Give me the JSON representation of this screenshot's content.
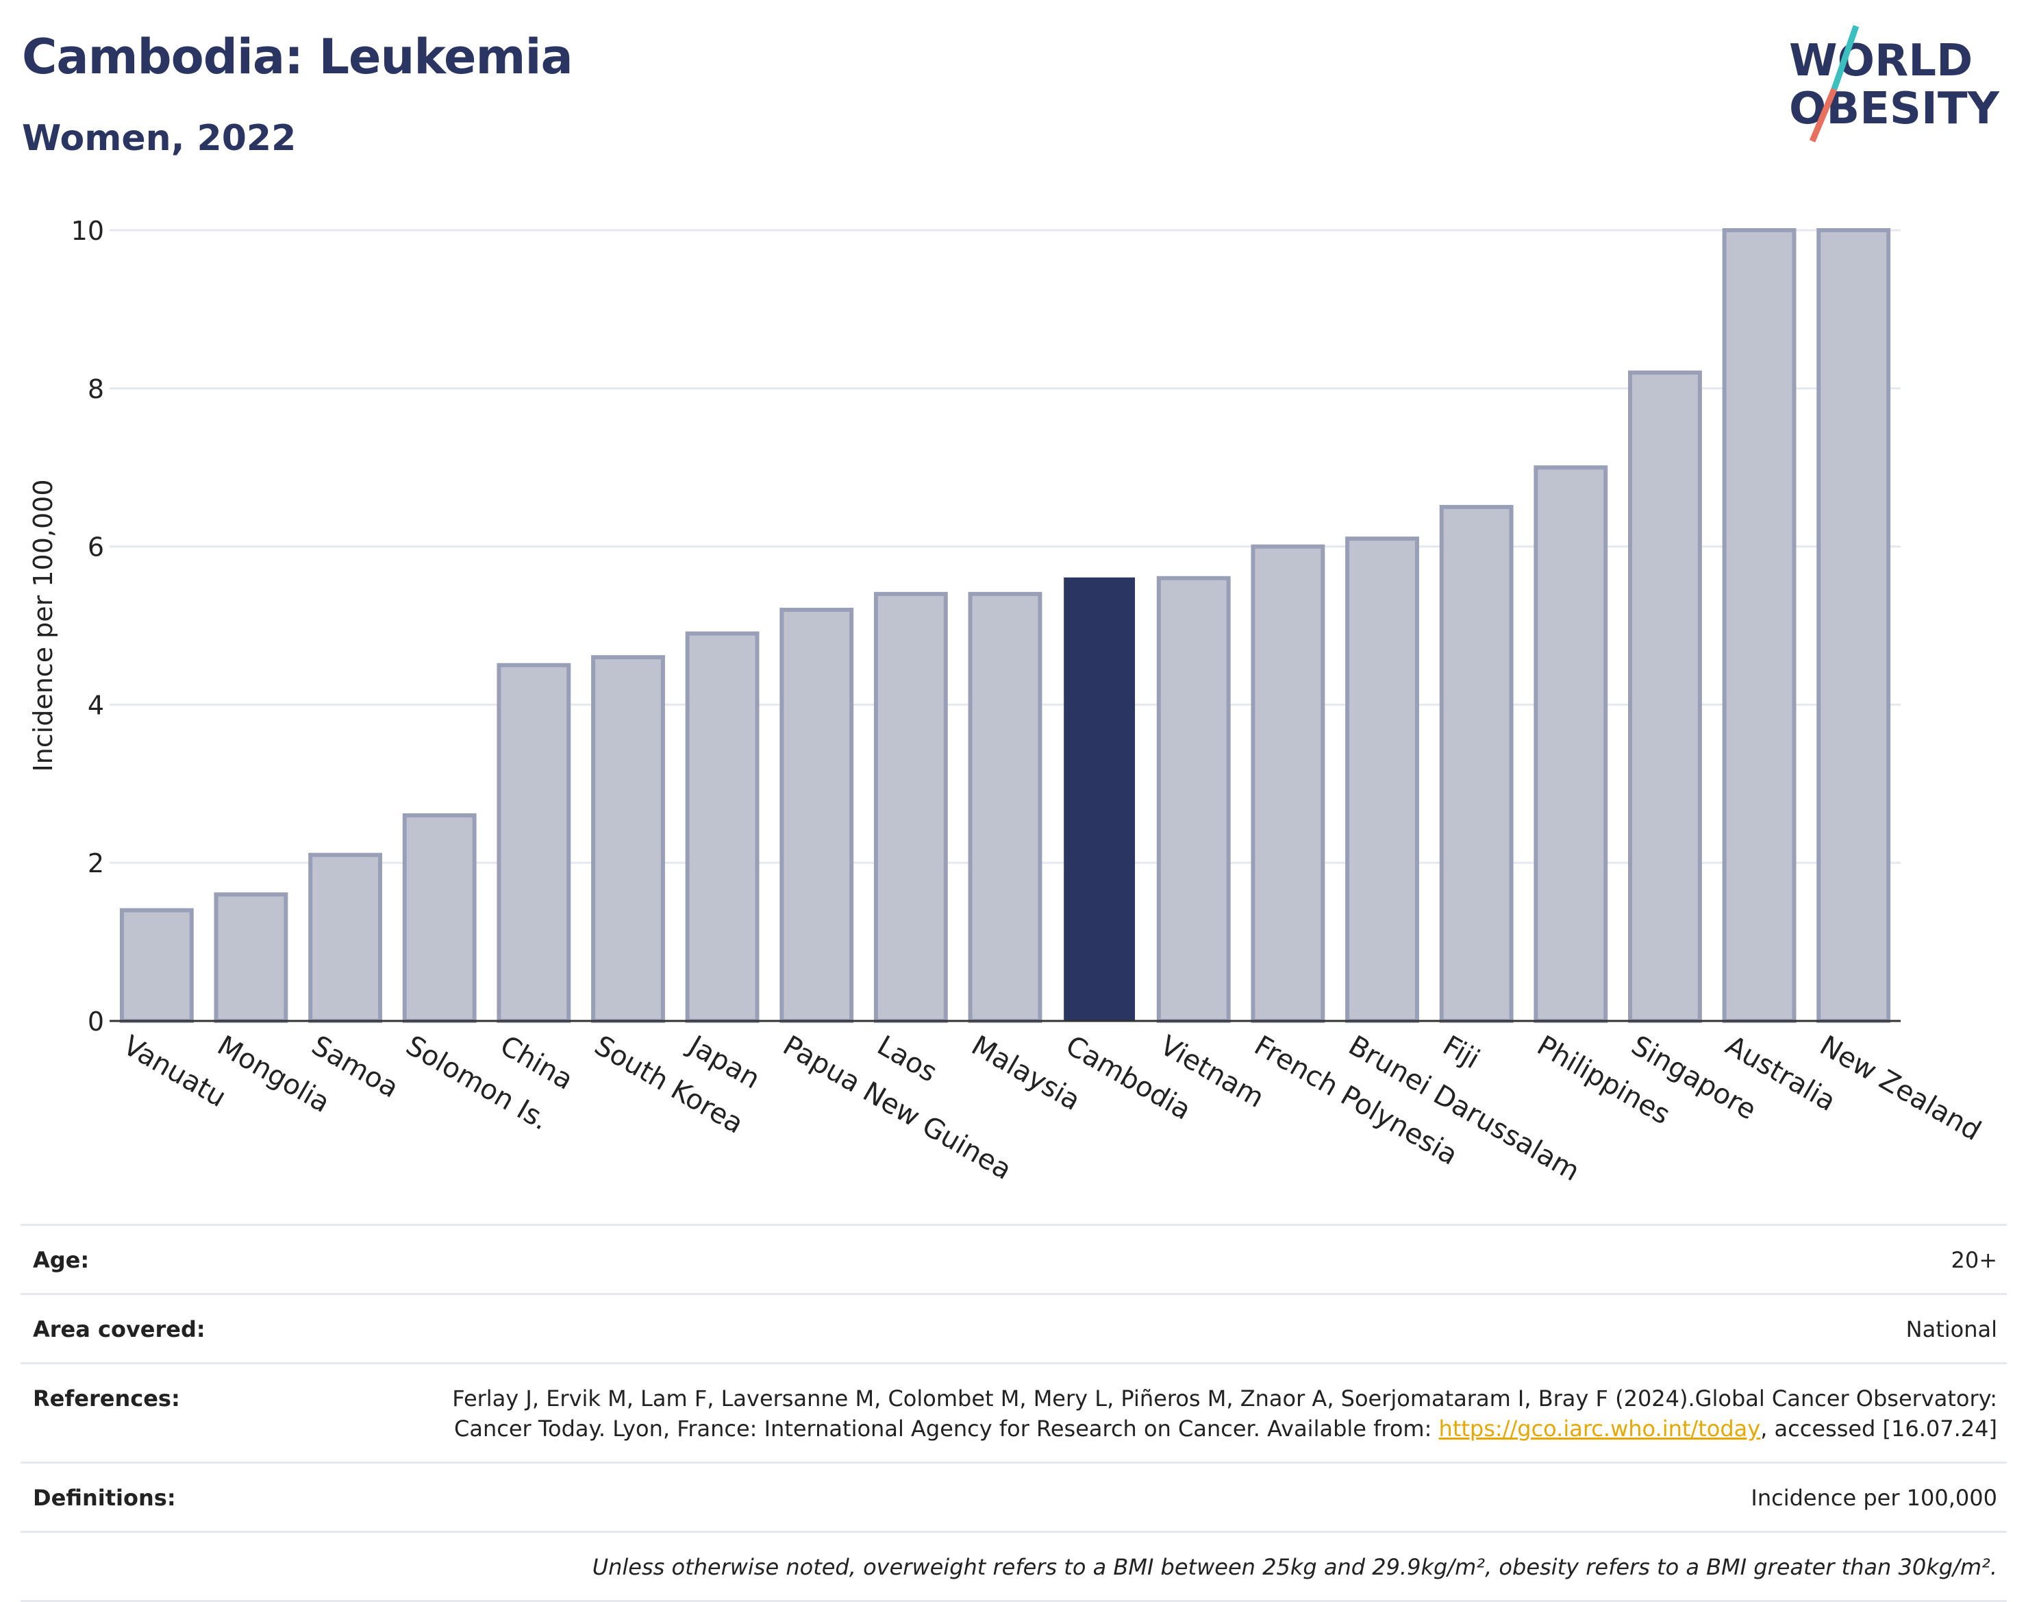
{
  "header": {
    "title": "Cambodia: Leukemia",
    "subtitle": "Women, 2022"
  },
  "logo": {
    "line1": "WORLD",
    "line2": "OBESITY",
    "accent_teal": "#3bbfbf",
    "accent_coral": "#e8705f",
    "text_color": "#2b3561"
  },
  "chart_data": {
    "type": "bar",
    "categories": [
      "Vanuatu",
      "Mongolia",
      "Samoa",
      "Solomon Is.",
      "China",
      "South Korea",
      "Japan",
      "Papua New Guinea",
      "Laos",
      "Malaysia",
      "Cambodia",
      "Vietnam",
      "French Polynesia",
      "Brunei Darussalam",
      "Fiji",
      "Philippines",
      "Singapore",
      "Australia",
      "New Zealand"
    ],
    "values": [
      1.4,
      1.6,
      2.1,
      2.6,
      4.5,
      4.6,
      4.9,
      5.2,
      5.4,
      5.4,
      5.6,
      5.6,
      6.0,
      6.1,
      6.5,
      7.0,
      8.2,
      10.0,
      10.0
    ],
    "highlight": "Cambodia",
    "ylabel": "Incidence per 100,000",
    "ylim": [
      0,
      10
    ],
    "yticks": [
      0,
      2,
      4,
      6,
      8,
      10
    ],
    "grid": true,
    "colors": {
      "bar": "#bfc2cf",
      "bar_edge": "#9a9fb8",
      "highlight": "#2b3561",
      "grid": "#e6e8ef",
      "axis": "#333333"
    }
  },
  "meta": {
    "age": {
      "label": "Age:",
      "value": "20+"
    },
    "area": {
      "label": "Area covered:",
      "value": "National"
    },
    "references": {
      "label": "References:",
      "text1": "Ferlay J, Ervik M, Lam F, Laversanne M, Colombet M, Mery L, Piñeros M, Znaor A, Soerjomataram I, Bray F (2024).Global Cancer Observatory: Cancer Today. Lyon, France: International Agency for Research on Cancer. Available from: ",
      "link": "https://gco.iarc.who.int/today",
      "text2": ", accessed [16.07.24]"
    },
    "definitions": {
      "label": "Definitions:",
      "value": "Incidence per 100,000"
    },
    "note": "Unless otherwise noted, overweight refers to a BMI between 25kg and 29.9kg/m², obesity refers to a BMI greater than 30kg/m²."
  }
}
